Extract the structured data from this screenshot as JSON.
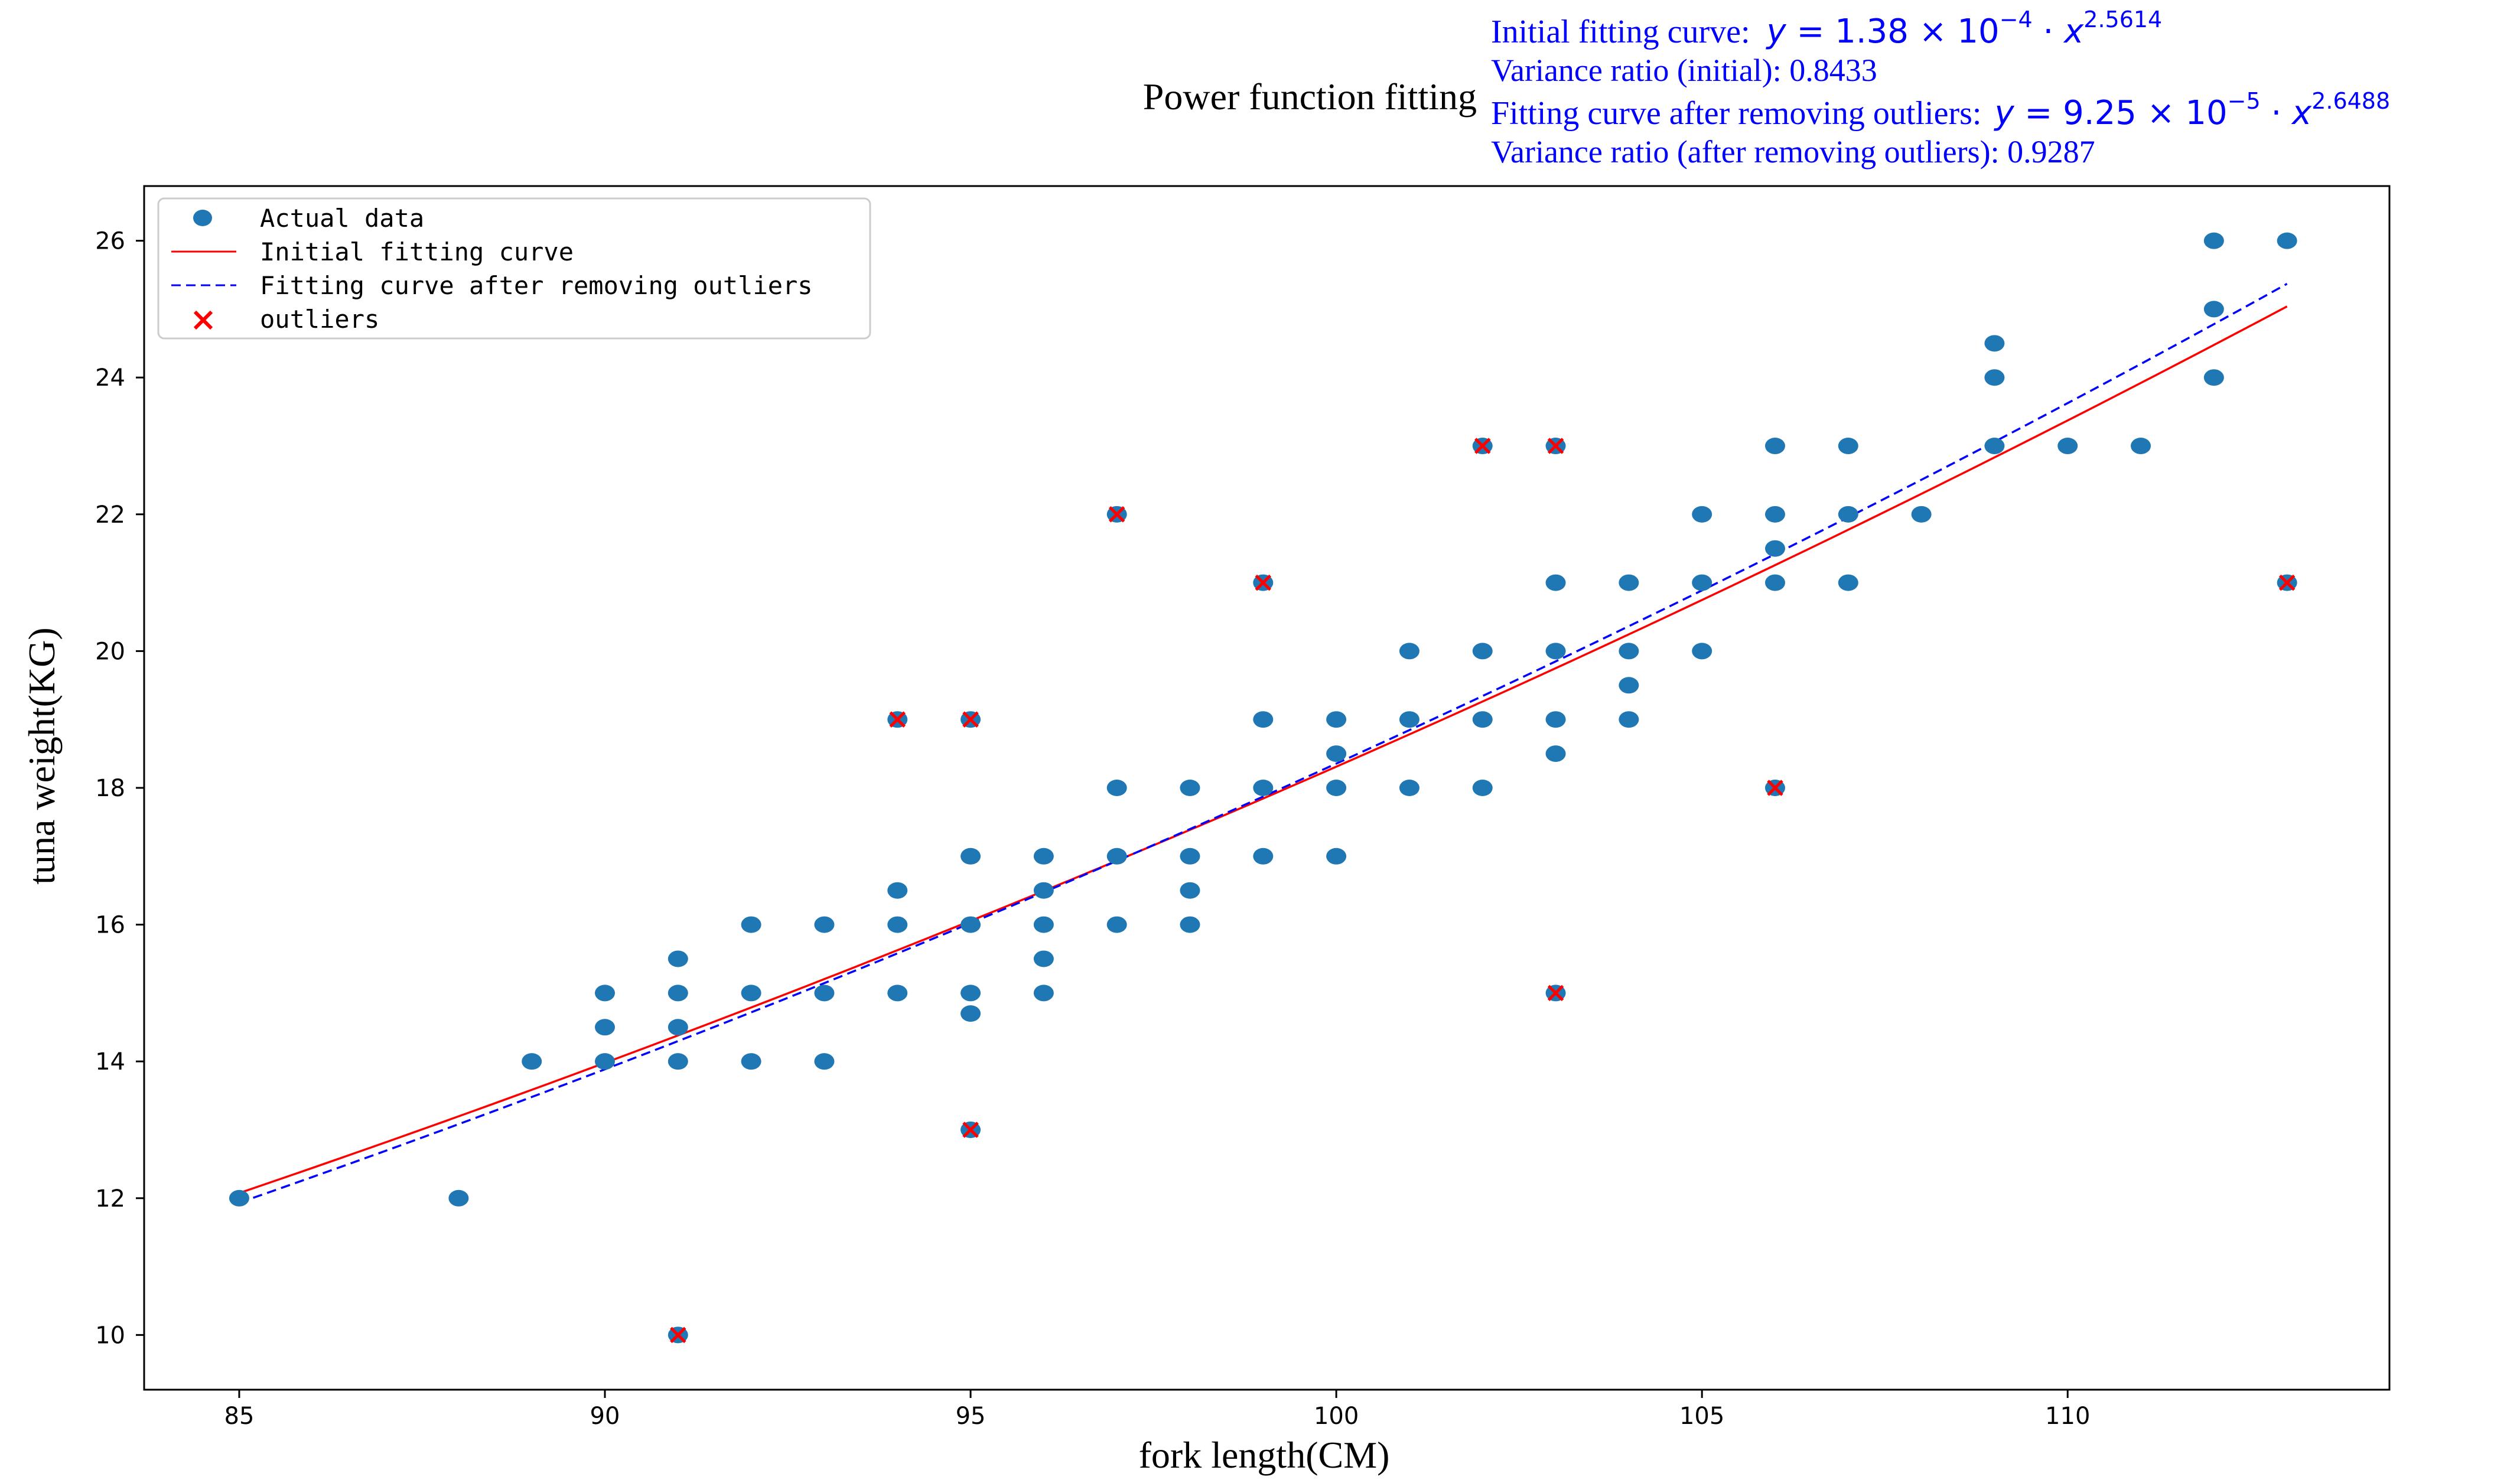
{
  "chart_data": {
    "type": "scatter",
    "title": "Power function fitting",
    "xlabel": "fork length(CM)",
    "ylabel": "tuna weight(KG)",
    "xlim": [
      83.7,
      114.4
    ],
    "ylim": [
      9.2,
      26.8
    ],
    "xticks": [
      85,
      90,
      95,
      100,
      105,
      110
    ],
    "yticks": [
      10,
      12,
      14,
      16,
      18,
      20,
      22,
      24,
      26
    ],
    "grid": false,
    "legend_position": "top-left",
    "annotations": {
      "initial_curve_label": "Initial fitting curve:",
      "initial_curve_formula": "y = 1.38 × 10^−4 · x^2.5614",
      "variance_initial": "Variance ratio (initial): 0.8433",
      "refit_curve_label": "Fitting curve after removing outliers:",
      "refit_curve_formula": "y = 9.25 × 10^−5 · x^2.6488",
      "variance_refit": "Variance ratio (after removing outliers): 0.9287"
    },
    "formula_parts": {
      "initial": {
        "coef": "1.38",
        "coef_exp": "−4",
        "x_exp": "2.5614"
      },
      "refit": {
        "coef": "9.25",
        "coef_exp": "−5",
        "x_exp": "2.6488"
      }
    },
    "series": [
      {
        "name": "Actual data",
        "kind": "scatter",
        "color": "#1f77b4",
        "points": [
          [
            85,
            12
          ],
          [
            88,
            12
          ],
          [
            89,
            14
          ],
          [
            90,
            14
          ],
          [
            90,
            14.5
          ],
          [
            90,
            15
          ],
          [
            91,
            14
          ],
          [
            91,
            14.5
          ],
          [
            91,
            15
          ],
          [
            91,
            15.5
          ],
          [
            91,
            10
          ],
          [
            92,
            14
          ],
          [
            92,
            15
          ],
          [
            92,
            16
          ],
          [
            93,
            14
          ],
          [
            93,
            15
          ],
          [
            93,
            16
          ],
          [
            94,
            15
          ],
          [
            94,
            16
          ],
          [
            94,
            16.5
          ],
          [
            94,
            19
          ],
          [
            95,
            13
          ],
          [
            95,
            14.7
          ],
          [
            95,
            15
          ],
          [
            95,
            16
          ],
          [
            95,
            17
          ],
          [
            95,
            19
          ],
          [
            96,
            15
          ],
          [
            96,
            15.5
          ],
          [
            96,
            16
          ],
          [
            96,
            16.5
          ],
          [
            96,
            17
          ],
          [
            97,
            16
          ],
          [
            97,
            17
          ],
          [
            97,
            18
          ],
          [
            97,
            22
          ],
          [
            98,
            16
          ],
          [
            98,
            16.5
          ],
          [
            98,
            17
          ],
          [
            98,
            18
          ],
          [
            99,
            17
          ],
          [
            99,
            18
          ],
          [
            99,
            19
          ],
          [
            99,
            21
          ],
          [
            100,
            17
          ],
          [
            100,
            18
          ],
          [
            100,
            18.5
          ],
          [
            100,
            19
          ],
          [
            101,
            18
          ],
          [
            101,
            19
          ],
          [
            101,
            20
          ],
          [
            102,
            18
          ],
          [
            102,
            19
          ],
          [
            102,
            20
          ],
          [
            102,
            23
          ],
          [
            103,
            15
          ],
          [
            103,
            18.5
          ],
          [
            103,
            19
          ],
          [
            103,
            20
          ],
          [
            103,
            21
          ],
          [
            103,
            23
          ],
          [
            104,
            19
          ],
          [
            104,
            19.5
          ],
          [
            104,
            20
          ],
          [
            104,
            21
          ],
          [
            105,
            20
          ],
          [
            105,
            21
          ],
          [
            105,
            22
          ],
          [
            106,
            18
          ],
          [
            106,
            21
          ],
          [
            106,
            21.5
          ],
          [
            106,
            22
          ],
          [
            106,
            23
          ],
          [
            107,
            21
          ],
          [
            107,
            22
          ],
          [
            107,
            23
          ],
          [
            108,
            22
          ],
          [
            109,
            23
          ],
          [
            109,
            24
          ],
          [
            109,
            24.5
          ],
          [
            110,
            23
          ],
          [
            111,
            23
          ],
          [
            112,
            24
          ],
          [
            112,
            25
          ],
          [
            112,
            26
          ],
          [
            113,
            21
          ],
          [
            113,
            26
          ]
        ]
      },
      {
        "name": "Initial fitting curve",
        "kind": "line",
        "color": "#ff0000",
        "dash": "solid",
        "coef": 0.000138,
        "exponent": 2.5614,
        "x_range": [
          85,
          113
        ]
      },
      {
        "name": "Fitting curve after removing outliers",
        "kind": "line",
        "color": "#0000ff",
        "dash": "dashed",
        "coef": 9.25e-05,
        "exponent": 2.6488,
        "x_range": [
          85,
          113
        ]
      },
      {
        "name": "outliers",
        "kind": "marker-x",
        "color": "#ff0000",
        "points": [
          [
            91,
            10
          ],
          [
            94,
            19
          ],
          [
            95,
            19
          ],
          [
            95,
            13
          ],
          [
            97,
            22
          ],
          [
            99,
            21
          ],
          [
            102,
            23
          ],
          [
            103,
            23
          ],
          [
            103,
            15
          ],
          [
            106,
            18
          ],
          [
            113,
            21
          ]
        ]
      }
    ]
  }
}
